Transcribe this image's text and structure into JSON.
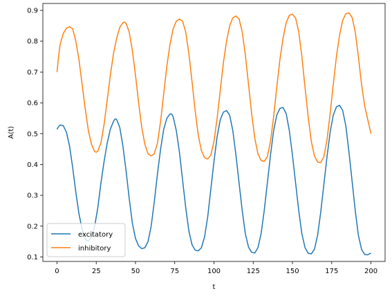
{
  "chart_data": {
    "type": "line",
    "title": "",
    "xlabel": "t",
    "ylabel": "A(t)",
    "xlim": [
      -9,
      209
    ],
    "ylim": [
      0.0855,
      0.9225
    ],
    "xticks": [
      0,
      25,
      50,
      75,
      100,
      125,
      150,
      175,
      200
    ],
    "yticks": [
      0.1,
      0.2,
      0.3,
      0.4,
      0.5,
      0.6,
      0.7,
      0.8,
      0.9
    ],
    "grid": false,
    "legend": "lower-left",
    "series": [
      {
        "name": "excitatory",
        "color": "#1f77b4",
        "points": [
          [
            0,
            0.514
          ],
          [
            1,
            0.523
          ],
          [
            2,
            0.528
          ],
          [
            4,
            0.526
          ],
          [
            6,
            0.505
          ],
          [
            8,
            0.46
          ],
          [
            10,
            0.39
          ],
          [
            12,
            0.31
          ],
          [
            14,
            0.24
          ],
          [
            16,
            0.19
          ],
          [
            18,
            0.16
          ],
          [
            19,
            0.152
          ],
          [
            20,
            0.152
          ],
          [
            22,
            0.165
          ],
          [
            24,
            0.2
          ],
          [
            26,
            0.26
          ],
          [
            28,
            0.34
          ],
          [
            30,
            0.41
          ],
          [
            32,
            0.47
          ],
          [
            34,
            0.515
          ],
          [
            36,
            0.54
          ],
          [
            37,
            0.548
          ],
          [
            38,
            0.546
          ],
          [
            40,
            0.52
          ],
          [
            42,
            0.46
          ],
          [
            44,
            0.38
          ],
          [
            46,
            0.29
          ],
          [
            48,
            0.21
          ],
          [
            50,
            0.16
          ],
          [
            52,
            0.136
          ],
          [
            54,
            0.127
          ],
          [
            56,
            0.13
          ],
          [
            58,
            0.15
          ],
          [
            60,
            0.2
          ],
          [
            62,
            0.28
          ],
          [
            64,
            0.37
          ],
          [
            66,
            0.45
          ],
          [
            68,
            0.515
          ],
          [
            70,
            0.55
          ],
          [
            72,
            0.564
          ],
          [
            73,
            0.564
          ],
          [
            74,
            0.555
          ],
          [
            76,
            0.51
          ],
          [
            78,
            0.44
          ],
          [
            80,
            0.35
          ],
          [
            82,
            0.26
          ],
          [
            84,
            0.185
          ],
          [
            86,
            0.14
          ],
          [
            88,
            0.122
          ],
          [
            90,
            0.12
          ],
          [
            92,
            0.13
          ],
          [
            94,
            0.165
          ],
          [
            96,
            0.23
          ],
          [
            98,
            0.32
          ],
          [
            100,
            0.41
          ],
          [
            102,
            0.49
          ],
          [
            104,
            0.545
          ],
          [
            106,
            0.57
          ],
          [
            108,
            0.575
          ],
          [
            110,
            0.56
          ],
          [
            112,
            0.51
          ],
          [
            114,
            0.43
          ],
          [
            116,
            0.34
          ],
          [
            118,
            0.25
          ],
          [
            120,
            0.175
          ],
          [
            122,
            0.132
          ],
          [
            124,
            0.115
          ],
          [
            126,
            0.113
          ],
          [
            128,
            0.13
          ],
          [
            130,
            0.175
          ],
          [
            132,
            0.25
          ],
          [
            134,
            0.34
          ],
          [
            136,
            0.43
          ],
          [
            138,
            0.51
          ],
          [
            140,
            0.56
          ],
          [
            142,
            0.582
          ],
          [
            144,
            0.585
          ],
          [
            146,
            0.565
          ],
          [
            148,
            0.51
          ],
          [
            150,
            0.43
          ],
          [
            152,
            0.34
          ],
          [
            154,
            0.25
          ],
          [
            156,
            0.175
          ],
          [
            158,
            0.13
          ],
          [
            160,
            0.112
          ],
          [
            162,
            0.11
          ],
          [
            164,
            0.125
          ],
          [
            166,
            0.17
          ],
          [
            168,
            0.245
          ],
          [
            170,
            0.335
          ],
          [
            172,
            0.425
          ],
          [
            174,
            0.505
          ],
          [
            176,
            0.56
          ],
          [
            178,
            0.587
          ],
          [
            180,
            0.592
          ],
          [
            182,
            0.575
          ],
          [
            184,
            0.525
          ],
          [
            186,
            0.44
          ],
          [
            188,
            0.345
          ],
          [
            190,
            0.25
          ],
          [
            192,
            0.17
          ],
          [
            194,
            0.125
          ],
          [
            196,
            0.108
          ],
          [
            198,
            0.107
          ],
          [
            200,
            0.113
          ]
        ]
      },
      {
        "name": "inhibitory",
        "color": "#ff7f0e",
        "points": [
          [
            0,
            0.7
          ],
          [
            1,
            0.75
          ],
          [
            2,
            0.79
          ],
          [
            4,
            0.825
          ],
          [
            6,
            0.842
          ],
          [
            8,
            0.847
          ],
          [
            10,
            0.84
          ],
          [
            12,
            0.8
          ],
          [
            14,
            0.74
          ],
          [
            16,
            0.66
          ],
          [
            18,
            0.58
          ],
          [
            20,
            0.51
          ],
          [
            22,
            0.465
          ],
          [
            24,
            0.442
          ],
          [
            25,
            0.44
          ],
          [
            26,
            0.443
          ],
          [
            28,
            0.47
          ],
          [
            30,
            0.53
          ],
          [
            32,
            0.61
          ],
          [
            34,
            0.69
          ],
          [
            36,
            0.76
          ],
          [
            38,
            0.81
          ],
          [
            40,
            0.845
          ],
          [
            42,
            0.86
          ],
          [
            43,
            0.862
          ],
          [
            44,
            0.858
          ],
          [
            46,
            0.83
          ],
          [
            48,
            0.77
          ],
          [
            50,
            0.69
          ],
          [
            52,
            0.6
          ],
          [
            54,
            0.52
          ],
          [
            56,
            0.465
          ],
          [
            58,
            0.435
          ],
          [
            60,
            0.428
          ],
          [
            62,
            0.435
          ],
          [
            64,
            0.47
          ],
          [
            66,
            0.54
          ],
          [
            68,
            0.63
          ],
          [
            70,
            0.72
          ],
          [
            72,
            0.79
          ],
          [
            74,
            0.84
          ],
          [
            76,
            0.865
          ],
          [
            78,
            0.872
          ],
          [
            80,
            0.865
          ],
          [
            82,
            0.83
          ],
          [
            84,
            0.76
          ],
          [
            86,
            0.67
          ],
          [
            88,
            0.575
          ],
          [
            90,
            0.495
          ],
          [
            92,
            0.445
          ],
          [
            94,
            0.422
          ],
          [
            96,
            0.418
          ],
          [
            98,
            0.43
          ],
          [
            100,
            0.475
          ],
          [
            102,
            0.55
          ],
          [
            104,
            0.64
          ],
          [
            106,
            0.73
          ],
          [
            108,
            0.8
          ],
          [
            110,
            0.85
          ],
          [
            112,
            0.876
          ],
          [
            114,
            0.882
          ],
          [
            116,
            0.872
          ],
          [
            118,
            0.83
          ],
          [
            120,
            0.755
          ],
          [
            122,
            0.66
          ],
          [
            124,
            0.565
          ],
          [
            126,
            0.485
          ],
          [
            128,
            0.435
          ],
          [
            130,
            0.413
          ],
          [
            132,
            0.41
          ],
          [
            134,
            0.425
          ],
          [
            136,
            0.475
          ],
          [
            138,
            0.555
          ],
          [
            140,
            0.65
          ],
          [
            142,
            0.74
          ],
          [
            144,
            0.81
          ],
          [
            146,
            0.86
          ],
          [
            148,
            0.884
          ],
          [
            150,
            0.888
          ],
          [
            152,
            0.875
          ],
          [
            154,
            0.83
          ],
          [
            156,
            0.75
          ],
          [
            158,
            0.65
          ],
          [
            160,
            0.555
          ],
          [
            162,
            0.475
          ],
          [
            164,
            0.428
          ],
          [
            166,
            0.408
          ],
          [
            168,
            0.406
          ],
          [
            170,
            0.425
          ],
          [
            172,
            0.48
          ],
          [
            174,
            0.565
          ],
          [
            176,
            0.66
          ],
          [
            178,
            0.75
          ],
          [
            180,
            0.82
          ],
          [
            182,
            0.868
          ],
          [
            184,
            0.889
          ],
          [
            186,
            0.892
          ],
          [
            188,
            0.877
          ],
          [
            190,
            0.83
          ],
          [
            192,
            0.75
          ],
          [
            194,
            0.66
          ],
          [
            196,
            0.59
          ],
          [
            198,
            0.545
          ],
          [
            200,
            0.5
          ]
        ]
      }
    ]
  }
}
